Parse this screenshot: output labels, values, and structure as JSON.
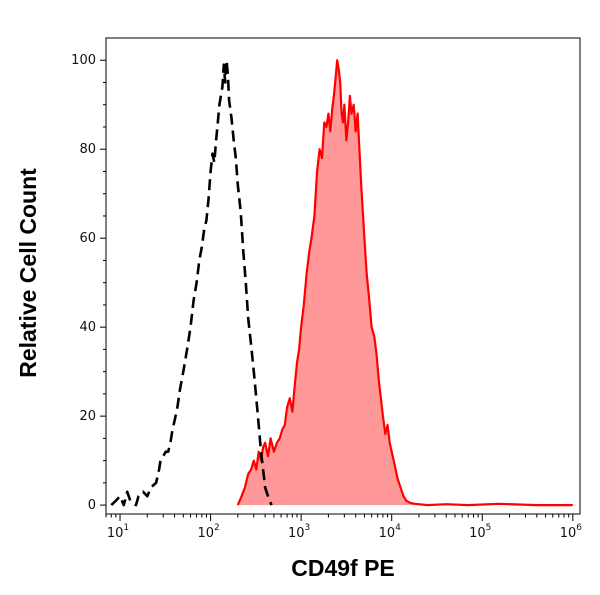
{
  "chart_data": {
    "type": "histogram",
    "xlabel": "CD49f PE",
    "ylabel": "Relative Cell Count",
    "x_scale": "log",
    "xlim": [
      7,
      1200000
    ],
    "ylim": [
      -2,
      105
    ],
    "grid": false,
    "x_ticks": [
      {
        "base": "10",
        "exp": "1",
        "value": 10
      },
      {
        "base": "10",
        "exp": "2",
        "value": 100
      },
      {
        "base": "10",
        "exp": "3",
        "value": 1000
      },
      {
        "base": "10",
        "exp": "4",
        "value": 10000
      },
      {
        "base": "10",
        "exp": "5",
        "value": 100000
      },
      {
        "base": "10",
        "exp": "6",
        "value": 1000000
      }
    ],
    "y_ticks": [
      {
        "label": "0",
        "value": 0
      },
      {
        "label": "20",
        "value": 20
      },
      {
        "label": "40",
        "value": 40
      },
      {
        "label": "60",
        "value": 60
      },
      {
        "label": "80",
        "value": 80
      },
      {
        "label": "100",
        "value": 100
      }
    ],
    "series": [
      {
        "style": "dashed-black-outline",
        "color": "#000000",
        "points": [
          [
            8,
            0
          ],
          [
            9,
            1
          ],
          [
            10,
            2
          ],
          [
            11,
            0
          ],
          [
            12,
            3
          ],
          [
            13,
            1
          ],
          [
            15,
            0
          ],
          [
            16,
            2
          ],
          [
            18,
            3
          ],
          [
            20,
            2
          ],
          [
            22,
            4
          ],
          [
            25,
            5
          ],
          [
            27,
            8
          ],
          [
            28,
            10
          ],
          [
            30,
            11
          ],
          [
            32,
            12
          ],
          [
            34,
            12
          ],
          [
            36,
            14
          ],
          [
            38,
            17
          ],
          [
            40,
            19
          ],
          [
            43,
            22
          ],
          [
            46,
            26
          ],
          [
            50,
            30
          ],
          [
            55,
            35
          ],
          [
            60,
            40
          ],
          [
            65,
            46
          ],
          [
            70,
            50
          ],
          [
            75,
            55
          ],
          [
            80,
            58
          ],
          [
            85,
            62
          ],
          [
            90,
            64
          ],
          [
            95,
            69
          ],
          [
            100,
            75
          ],
          [
            105,
            79
          ],
          [
            110,
            77
          ],
          [
            115,
            82
          ],
          [
            120,
            86
          ],
          [
            125,
            90
          ],
          [
            130,
            92
          ],
          [
            135,
            94
          ],
          [
            140,
            99
          ],
          [
            145,
            95
          ],
          [
            150,
            100
          ],
          [
            155,
            97
          ],
          [
            160,
            91
          ],
          [
            170,
            87
          ],
          [
            180,
            82
          ],
          [
            190,
            78
          ],
          [
            200,
            72
          ],
          [
            215,
            66
          ],
          [
            230,
            57
          ],
          [
            245,
            50
          ],
          [
            260,
            42
          ],
          [
            280,
            36
          ],
          [
            300,
            30
          ],
          [
            320,
            24
          ],
          [
            340,
            18
          ],
          [
            360,
            12
          ],
          [
            380,
            8
          ],
          [
            400,
            4
          ],
          [
            430,
            2
          ],
          [
            470,
            0
          ]
        ]
      },
      {
        "style": "solid-red-filled",
        "color": "#ff0000",
        "fill": "#ff9999",
        "points": [
          [
            200,
            0
          ],
          [
            220,
            2
          ],
          [
            240,
            4
          ],
          [
            260,
            7
          ],
          [
            280,
            8
          ],
          [
            300,
            10
          ],
          [
            320,
            8
          ],
          [
            340,
            12
          ],
          [
            360,
            10
          ],
          [
            380,
            13
          ],
          [
            400,
            14
          ],
          [
            430,
            11
          ],
          [
            460,
            15
          ],
          [
            500,
            12
          ],
          [
            540,
            14
          ],
          [
            580,
            15
          ],
          [
            620,
            17
          ],
          [
            660,
            18
          ],
          [
            700,
            22
          ],
          [
            750,
            24
          ],
          [
            800,
            21
          ],
          [
            850,
            27
          ],
          [
            900,
            32
          ],
          [
            950,
            35
          ],
          [
            1000,
            40
          ],
          [
            1070,
            45
          ],
          [
            1150,
            52
          ],
          [
            1230,
            57
          ],
          [
            1300,
            60
          ],
          [
            1400,
            65
          ],
          [
            1500,
            75
          ],
          [
            1600,
            80
          ],
          [
            1700,
            78
          ],
          [
            1800,
            86
          ],
          [
            1900,
            85
          ],
          [
            2000,
            88
          ],
          [
            2100,
            84
          ],
          [
            2200,
            89
          ],
          [
            2300,
            92
          ],
          [
            2400,
            96
          ],
          [
            2500,
            100
          ],
          [
            2600,
            98
          ],
          [
            2700,
            95
          ],
          [
            2800,
            88
          ],
          [
            2900,
            86
          ],
          [
            3000,
            90
          ],
          [
            3150,
            82
          ],
          [
            3300,
            86
          ],
          [
            3450,
            92
          ],
          [
            3600,
            88
          ],
          [
            3800,
            90
          ],
          [
            4000,
            84
          ],
          [
            4200,
            88
          ],
          [
            4400,
            80
          ],
          [
            4600,
            72
          ],
          [
            4800,
            66
          ],
          [
            5000,
            60
          ],
          [
            5300,
            52
          ],
          [
            5600,
            47
          ],
          [
            6000,
            40
          ],
          [
            6400,
            38
          ],
          [
            6800,
            34
          ],
          [
            7200,
            28
          ],
          [
            7600,
            24
          ],
          [
            8000,
            20
          ],
          [
            8500,
            16
          ],
          [
            9000,
            18
          ],
          [
            9500,
            14
          ],
          [
            10000,
            12
          ],
          [
            10800,
            9
          ],
          [
            11600,
            6
          ],
          [
            12500,
            4
          ],
          [
            13500,
            2
          ],
          [
            14500,
            1
          ],
          [
            16000,
            0.5
          ],
          [
            18000,
            0.3
          ],
          [
            25000,
            0
          ],
          [
            40000,
            0.2
          ],
          [
            70000,
            0
          ],
          [
            150000,
            0.3
          ],
          [
            400000,
            0
          ],
          [
            1000000,
            0
          ]
        ]
      }
    ]
  }
}
